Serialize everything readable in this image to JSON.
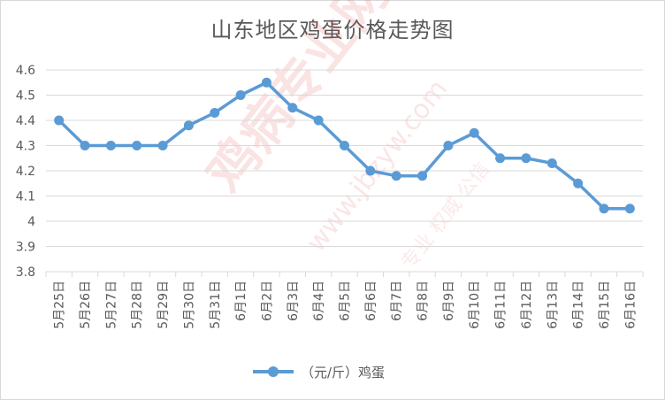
{
  "chart_data": {
    "type": "line",
    "title": "山东地区鸡蛋价格走势图",
    "categories": [
      "5月25日",
      "5月26日",
      "5月27日",
      "5月28日",
      "5月29日",
      "5月30日",
      "5月31日",
      "6月1日",
      "6月2日",
      "6月3日",
      "6月4日",
      "6月5日",
      "6月6日",
      "6月7日",
      "6月8日",
      "6月9日",
      "6月10日",
      "6月11日",
      "6月12日",
      "6月13日",
      "6月14日",
      "6月15日",
      "6月16日"
    ],
    "series": [
      {
        "name": "（元/斤）鸡蛋",
        "values": [
          4.4,
          4.3,
          4.3,
          4.3,
          4.3,
          4.38,
          4.43,
          4.5,
          4.55,
          4.45,
          4.4,
          4.3,
          4.2,
          4.18,
          4.18,
          4.3,
          4.35,
          4.25,
          4.25,
          4.23,
          4.15,
          4.05,
          4.05
        ]
      }
    ],
    "yticks": [
      "3.8",
      "3.9",
      "4",
      "4.1",
      "4.2",
      "4.3",
      "4.4",
      "4.5",
      "4.6"
    ],
    "ylim": [
      3.8,
      4.6
    ],
    "xlabel": "",
    "ylabel": "",
    "grid": true,
    "legend": "bottom",
    "colors": {
      "series": "#5b9bd5",
      "grid": "#d9d9d9",
      "text": "#595959"
    }
  },
  "watermark": {
    "brand": "鸡病专业网",
    "url": "www.jbzyw.com",
    "tagline": "专业 权威 公信"
  }
}
